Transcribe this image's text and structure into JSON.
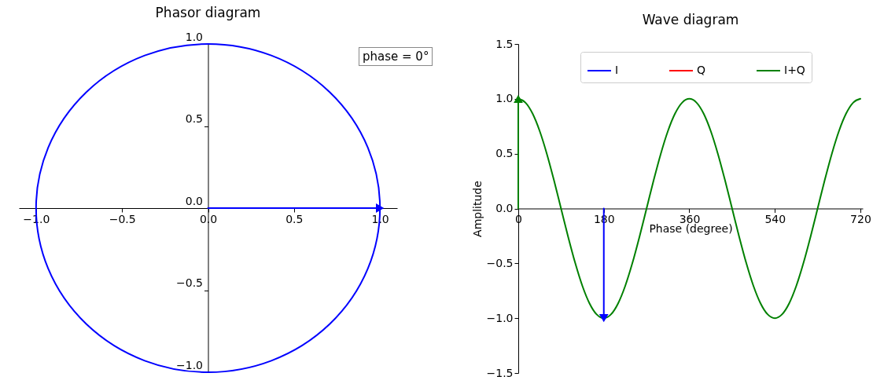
{
  "chart_data": [
    {
      "type": "line",
      "title": "Phasor diagram",
      "legend": false,
      "annotations": [
        "phase = 0°"
      ],
      "xlim": [
        -1.1,
        1.1
      ],
      "ylim": [
        -1,
        1
      ],
      "xticks": [
        {
          "value": -1,
          "label": "−1.0"
        },
        {
          "value": -0.5,
          "label": "−0.5"
        },
        {
          "value": 0,
          "label": "0.0"
        },
        {
          "value": 0.5,
          "label": "0.5"
        },
        {
          "value": 1,
          "label": "1.0"
        }
      ],
      "yticks": [
        {
          "value": -1,
          "label": "−1.0"
        },
        {
          "value": -0.5,
          "label": "−0.5"
        },
        {
          "value": 0,
          "label": "0.0"
        },
        {
          "value": 0.5,
          "label": "0.5"
        },
        {
          "value": 1,
          "label": "1.0"
        }
      ],
      "series": [
        {
          "color": "#0000ff",
          "x": [
            0,
            1
          ],
          "values": [
            0,
            0
          ]
        }
      ]
    },
    {
      "type": "line",
      "title": "Wave diagram",
      "xlabel": "Phase (degree)",
      "ylabel": "Amplitude",
      "legend": "top",
      "xlim": [
        0,
        725
      ],
      "ylim": [
        -1.5,
        1.5
      ],
      "xticks": [
        0,
        180,
        360,
        540,
        720
      ],
      "yticks": [
        {
          "value": -1.5,
          "label": "−1.5"
        },
        {
          "value": -1,
          "label": "−1.0"
        },
        {
          "value": -0.5,
          "label": "−0.5"
        },
        {
          "value": 0,
          "label": "0.0"
        },
        {
          "value": 0.5,
          "label": "0.5"
        },
        {
          "value": 1,
          "label": "1.0"
        },
        {
          "value": 1.5,
          "label": "1.5"
        }
      ],
      "series": [
        {
          "name": "I",
          "color": "#0000ff"
        },
        {
          "name": "Q",
          "color": "#ff0000"
        },
        {
          "name": "I+Q",
          "color": "#008000",
          "x": [
            0,
            15,
            30,
            45,
            60,
            75,
            90,
            105,
            120,
            135,
            150,
            165,
            180,
            195,
            210,
            225,
            240,
            255,
            270,
            285,
            300,
            315,
            330,
            345,
            360,
            375,
            390,
            405,
            420,
            435,
            450,
            465,
            480,
            495,
            510,
            525,
            540,
            555,
            570,
            585,
            600,
            615,
            630,
            645,
            660,
            675,
            690,
            705,
            720
          ],
          "values": [
            1,
            0.966,
            0.866,
            0.707,
            0.5,
            0.259,
            0,
            -0.259,
            -0.5,
            -0.707,
            -0.866,
            -0.966,
            -1,
            -0.966,
            -0.866,
            -0.707,
            -0.5,
            -0.259,
            0,
            0.259,
            0.5,
            0.707,
            0.866,
            0.966,
            1,
            0.966,
            0.866,
            0.707,
            0.5,
            0.259,
            0,
            -0.259,
            -0.5,
            -0.707,
            -0.866,
            -0.966,
            -1,
            -0.966,
            -0.866,
            -0.707,
            -0.5,
            -0.259,
            0,
            0.259,
            0.5,
            0.707,
            0.866,
            0.966,
            1
          ]
        },
        {
          "color": "#008000",
          "x": [
            0,
            0
          ],
          "values": [
            0,
            1
          ]
        },
        {
          "color": "#0000ff",
          "x": [
            180,
            180
          ],
          "values": [
            0,
            -1
          ]
        }
      ]
    }
  ]
}
